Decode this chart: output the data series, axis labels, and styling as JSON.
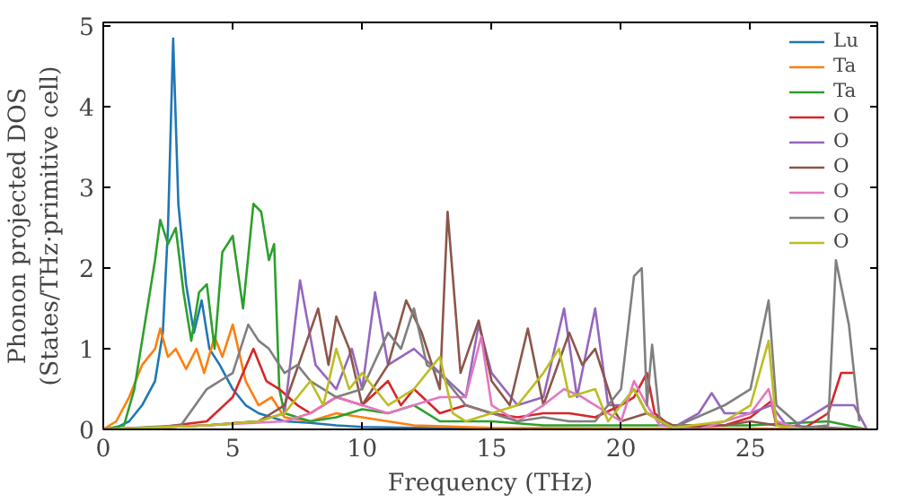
{
  "chart_data": {
    "type": "line",
    "xlabel": "Frequency (THz)",
    "ylabel": "Phonon projected DOS\n(States/THz·primitive cell)",
    "xlim": [
      0,
      29.9
    ],
    "ylim": [
      0,
      5.05
    ],
    "xticks": [
      0,
      5,
      10,
      15,
      20,
      25
    ],
    "yticks": [
      0,
      1,
      2,
      3,
      4,
      5
    ],
    "legend": "top right",
    "grid": false,
    "series": [
      {
        "name": "Lu",
        "color": "#1f77b4",
        "x": [
          0,
          0.5,
          1,
          1.5,
          2,
          2.3,
          2.5,
          2.7,
          2.9,
          3.2,
          3.5,
          3.8,
          4.1,
          4.5,
          5,
          5.5,
          6,
          7,
          8,
          9,
          10,
          12,
          15,
          20
        ],
        "values": [
          0,
          0.02,
          0.1,
          0.3,
          0.6,
          1.2,
          2.5,
          4.85,
          2.8,
          1.8,
          1.2,
          1.6,
          1.0,
          0.8,
          0.5,
          0.3,
          0.2,
          0.1,
          0.08,
          0.05,
          0.03,
          0.02,
          0.01,
          0.01
        ]
      },
      {
        "name": "Ta",
        "color": "#ff7f0e",
        "x": [
          0,
          0.5,
          1,
          1.5,
          2,
          2.2,
          2.5,
          2.8,
          3.2,
          3.6,
          3.9,
          4.3,
          4.6,
          5,
          5.5,
          6,
          6.5,
          7,
          8,
          9,
          10,
          11,
          12,
          15,
          20,
          25,
          29.5
        ],
        "values": [
          0,
          0.1,
          0.4,
          0.8,
          1.0,
          1.25,
          0.9,
          1.0,
          0.75,
          1.0,
          0.7,
          1.15,
          0.9,
          1.3,
          0.6,
          0.3,
          0.4,
          0.15,
          0.1,
          0.2,
          0.15,
          0.1,
          0.05,
          0.02,
          0.01,
          0.01,
          0
        ]
      },
      {
        "name": "Ta",
        "color": "#2ca02c",
        "x": [
          0,
          0.8,
          1.2,
          1.6,
          2,
          2.2,
          2.5,
          2.8,
          3.1,
          3.4,
          3.7,
          4,
          4.3,
          4.6,
          5,
          5.4,
          5.8,
          6.1,
          6.4,
          6.6,
          6.8,
          7,
          8,
          9,
          10,
          11,
          12,
          13,
          15,
          17,
          20,
          25,
          28,
          29.5
        ],
        "values": [
          0,
          0.05,
          0.5,
          1.3,
          2.1,
          2.6,
          2.3,
          2.5,
          1.7,
          1.1,
          1.7,
          1.8,
          1.0,
          2.2,
          2.4,
          1.5,
          2.8,
          2.7,
          2.1,
          2.3,
          0.5,
          0.2,
          0.1,
          0.15,
          0.25,
          0.2,
          0.3,
          0.1,
          0.1,
          0.05,
          0.05,
          0.05,
          0.1,
          0
        ]
      },
      {
        "name": "O",
        "color": "#d62728",
        "x": [
          0,
          2,
          4,
          5,
          5.8,
          6.3,
          6.8,
          7.5,
          8,
          9,
          10,
          11,
          11.5,
          12,
          13,
          14,
          15,
          16,
          17,
          18,
          19,
          20,
          20.5,
          21,
          21.3,
          22,
          24,
          25,
          25.8,
          26,
          27,
          28,
          28.5,
          29
        ],
        "values": [
          0,
          0.02,
          0.1,
          0.4,
          1.0,
          0.6,
          0.5,
          0.3,
          0.2,
          0.4,
          0.3,
          0.6,
          0.3,
          0.5,
          0.2,
          0.3,
          0.2,
          0.15,
          0.2,
          0.2,
          0.15,
          0.3,
          0.4,
          0.7,
          0.2,
          0.02,
          0.05,
          0.15,
          0.35,
          0.05,
          0,
          0.2,
          0.7,
          0.7
        ]
      },
      {
        "name": "O",
        "color": "#9467bd",
        "x": [
          0,
          4,
          6,
          7,
          7.6,
          8.2,
          9,
          9.6,
          10,
          10.5,
          11,
          12,
          13,
          14,
          14.5,
          15,
          16,
          17,
          17.8,
          18.3,
          19,
          19.5,
          20,
          20.5,
          21,
          22,
          23,
          23.5,
          24,
          25,
          25.8,
          26.5,
          28,
          29,
          29.5
        ],
        "values": [
          0,
          0.05,
          0.1,
          0.2,
          1.85,
          0.8,
          0.5,
          1.0,
          0.5,
          1.7,
          0.8,
          1.0,
          0.7,
          0.4,
          1.3,
          0.7,
          0.3,
          0.4,
          1.5,
          0.4,
          1.5,
          0.3,
          0.3,
          0.5,
          0.2,
          0.02,
          0.2,
          0.45,
          0.2,
          0.2,
          0.3,
          0,
          0.3,
          0.3,
          0
        ]
      },
      {
        "name": "O",
        "color": "#8c564b",
        "x": [
          0,
          4,
          6,
          7,
          8.3,
          8.7,
          9,
          9.5,
          10,
          11,
          11.7,
          12.3,
          13,
          13.3,
          13.8,
          14.5,
          15,
          15.7,
          16.4,
          17,
          18,
          18.5,
          19,
          19.8,
          20,
          21,
          22,
          24,
          25,
          26,
          29.5
        ],
        "values": [
          0,
          0.05,
          0.1,
          0.3,
          1.5,
          0.8,
          1.4,
          1.0,
          0.3,
          0.8,
          1.6,
          1.2,
          0.5,
          2.7,
          0.7,
          1.35,
          0.6,
          0.3,
          1.25,
          0.3,
          1.2,
          0.8,
          1.0,
          0.2,
          0.1,
          0.2,
          0.05,
          0.05,
          0.1,
          0.05,
          0
        ]
      },
      {
        "name": "O",
        "color": "#e377c2",
        "x": [
          0,
          4,
          7,
          8,
          9,
          10,
          11,
          12,
          13,
          14,
          14.6,
          15,
          16,
          17,
          17.8,
          18.5,
          19,
          20,
          20.5,
          21,
          21.5,
          23,
          25,
          25.7,
          26,
          27,
          29.5
        ],
        "values": [
          0,
          0.05,
          0.1,
          0.2,
          0.4,
          0.3,
          0.2,
          0.3,
          0.4,
          0.4,
          1.15,
          0.3,
          0.1,
          0.3,
          0.5,
          0.4,
          0.3,
          0.1,
          0.6,
          0.3,
          0.05,
          0,
          0.2,
          0.5,
          0.1,
          0,
          0
        ]
      },
      {
        "name": "O",
        "color": "#7f7f7f",
        "x": [
          0,
          3,
          4,
          5,
          5.6,
          6,
          6.4,
          7,
          7.5,
          8,
          9,
          10,
          11,
          11.5,
          12,
          12.5,
          13,
          14,
          15,
          16,
          17,
          18,
          19,
          20,
          20.5,
          20.8,
          21,
          21.2,
          21.5,
          22,
          24,
          25,
          25.7,
          26,
          27,
          28,
          28.3,
          28.8,
          29.2
        ],
        "values": [
          0,
          0.05,
          0.5,
          0.7,
          1.3,
          1.1,
          1.0,
          0.7,
          0.8,
          0.6,
          0.4,
          0.5,
          1.2,
          1.0,
          1.5,
          0.8,
          0.7,
          0.3,
          0.2,
          0.1,
          0.15,
          0.1,
          0.1,
          0.5,
          1.9,
          2.0,
          0.3,
          1.05,
          0.1,
          0.02,
          0.3,
          0.5,
          1.6,
          0.3,
          0.02,
          0.05,
          2.1,
          1.3,
          0.1
        ]
      },
      {
        "name": "O",
        "color": "#bcbd22",
        "x": [
          0,
          4,
          6,
          7,
          8,
          8.5,
          9,
          9.5,
          10,
          11,
          12,
          13,
          13.5,
          14,
          15,
          16,
          17,
          17.6,
          18,
          19,
          19.5,
          20,
          20.5,
          21,
          22,
          24,
          25,
          25.7,
          26,
          27,
          29.5
        ],
        "values": [
          0,
          0.05,
          0.1,
          0.2,
          0.6,
          0.3,
          1.0,
          0.5,
          0.7,
          0.3,
          0.5,
          0.9,
          0.2,
          0.1,
          0.2,
          0.3,
          0.7,
          1.0,
          0.4,
          0.5,
          0.1,
          0.3,
          0.5,
          0.2,
          0.02,
          0.1,
          0.3,
          1.1,
          0.05,
          0,
          0
        ]
      }
    ]
  }
}
